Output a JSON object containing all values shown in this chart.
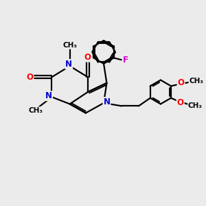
{
  "bg_color": "#ebebeb",
  "bond_color": "#000000",
  "n_color": "#0000cc",
  "o_color": "#ff0000",
  "f_color": "#cc00cc",
  "line_width": 1.6,
  "figsize": [
    3.0,
    3.0
  ],
  "dpi": 100,
  "xlim": [
    0,
    10
  ],
  "ylim": [
    0,
    10
  ]
}
